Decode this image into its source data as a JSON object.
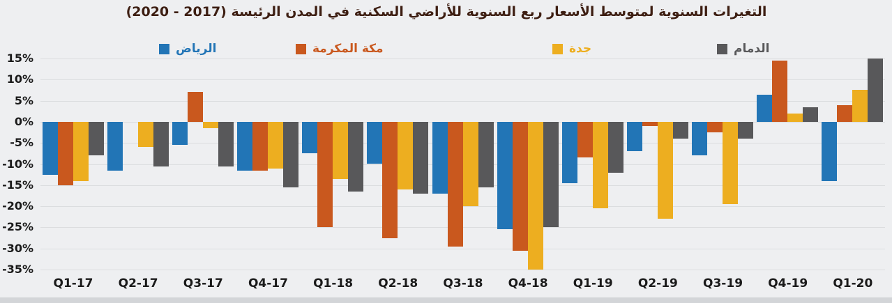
{
  "title": "التغيرات السنوية لمتوسط الأسعار ربع السنوية للأراضي السكنية في المدن الرئيسة (2017 - 2020)",
  "colors": {
    "riyadh": "#2275B6",
    "makkah": "#C9581E",
    "jeddah": "#EDAE20",
    "dammam": "#58585A",
    "background": "#EEEFF1",
    "gridline": "#DBDDDF",
    "title_text": "#3D1E12",
    "axis_text": "#1A1A1A",
    "bottom_strip": "#D3D5D8"
  },
  "legend": [
    {
      "label": "الرياض",
      "series": "riyadh"
    },
    {
      "label": "مكة المكرمة",
      "series": "makkah"
    },
    {
      "label": "جدة",
      "series": "jeddah"
    },
    {
      "label": "الدمام",
      "series": "dammam"
    }
  ],
  "chart_data": {
    "type": "bar",
    "title": "التغيرات السنوية لمتوسط الأسعار ربع السنوية للأراضي السكنية في المدن الرئيسة (2017 - 2020)",
    "categories": [
      "Q1-17",
      "Q2-17",
      "Q3-17",
      "Q4-17",
      "Q1-18",
      "Q2-18",
      "Q3-18",
      "Q4-18",
      "Q1-19",
      "Q2-19",
      "Q3-19",
      "Q4-19",
      "Q1-20"
    ],
    "series": [
      {
        "name": "الرياض",
        "color_key": "riyadh",
        "values": [
          -12.5,
          -11.5,
          -5.5,
          -11.5,
          -7.5,
          -10,
          -17,
          -25.5,
          -14.5,
          -7,
          -8,
          6.5,
          -14
        ]
      },
      {
        "name": "مكة المكرمة",
        "color_key": "makkah",
        "values": [
          -15,
          0,
          7,
          -11.5,
          -25,
          -27.5,
          -29.5,
          -30.5,
          -8.5,
          -1,
          -2.5,
          14.5,
          4
        ]
      },
      {
        "name": "جدة",
        "color_key": "jeddah",
        "values": [
          -14,
          -6,
          -1.5,
          -11,
          -13.5,
          -16,
          -20,
          -35,
          -20.5,
          -23,
          -19.5,
          2,
          7.5
        ]
      },
      {
        "name": "الدمام",
        "color_key": "dammam",
        "values": [
          -8,
          -10.5,
          -10.5,
          -15.5,
          -16.5,
          -17,
          -15.5,
          -25,
          -12,
          -4,
          -4,
          3.5,
          15
        ]
      }
    ],
    "xlabel": "",
    "ylabel": "",
    "ylim": [
      -35,
      15
    ],
    "ytick_step": 5,
    "ytick_labels": [
      "15%",
      "10%",
      "5%",
      "0%",
      "-5%",
      "-10%",
      "-15%",
      "-20%",
      "-25%",
      "-30%",
      "-35%"
    ],
    "grid": true,
    "legend_position": "top",
    "unit": "%"
  }
}
